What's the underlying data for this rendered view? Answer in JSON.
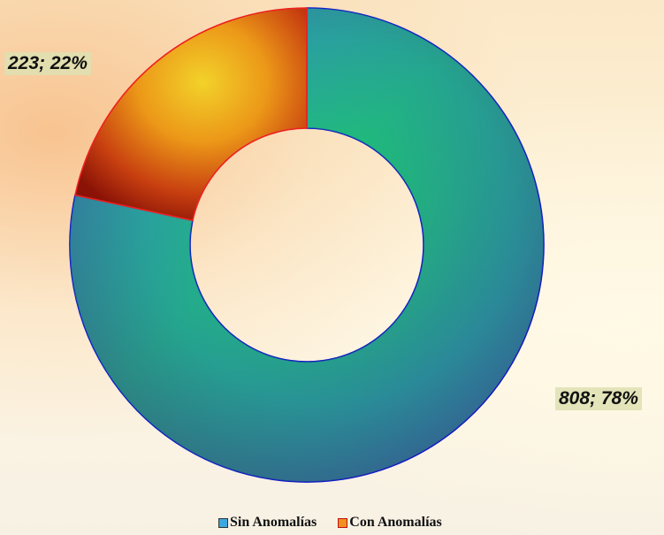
{
  "chart_data": {
    "type": "pie",
    "variant": "donut",
    "title": "",
    "categories": [
      "Sin Anomalías",
      "Con Anomalías"
    ],
    "values": [
      808,
      223
    ],
    "percentages": [
      78,
      22
    ],
    "data_labels": [
      "808; 78%",
      "223; 22%"
    ],
    "legend": {
      "placement": "bottom",
      "entries": [
        "Sin Anomalías",
        "Con Anomalías"
      ]
    },
    "colors": {
      "sin_fill": [
        "#2fa0d8",
        "#22c060",
        "#3a5a9a"
      ],
      "sin_outline": "#1010cc",
      "con_fill": [
        "#f0c020",
        "#e07010",
        "#a01808"
      ],
      "con_outline": "#ee2020"
    }
  }
}
